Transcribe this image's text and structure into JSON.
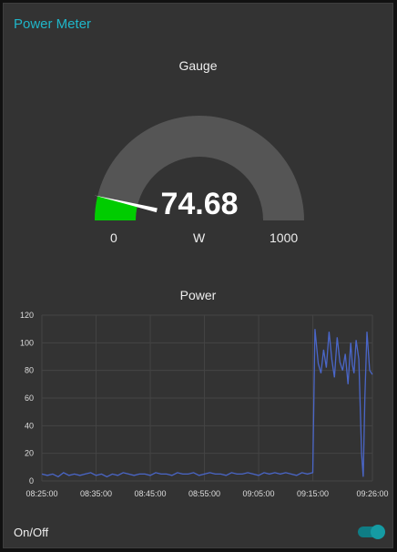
{
  "card": {
    "title": "Power Meter"
  },
  "gauge": {
    "title": "Gauge",
    "value": 74.68,
    "value_text": "74.68",
    "min": 0,
    "max": 1000,
    "min_label": "0",
    "max_label": "1000",
    "unit": "W",
    "fill_color": "#00cc00",
    "track_color": "#555555"
  },
  "chart": {
    "title": "Power",
    "line_color": "#4a66c8"
  },
  "chart_data": {
    "type": "line",
    "title": "Power",
    "xlabel": "",
    "ylabel": "",
    "ylim": [
      0,
      120
    ],
    "yticks": [
      "0",
      "20",
      "40",
      "60",
      "80",
      "100",
      "120"
    ],
    "xticks": [
      "08:25:00",
      "08:35:00",
      "08:45:00",
      "08:55:00",
      "09:05:00",
      "09:15:00",
      "09:26:00"
    ],
    "grid": true,
    "x_minutes_range": [
      0,
      61
    ],
    "series": [
      {
        "color": "#4a66c8",
        "x": [
          0,
          1,
          2,
          3,
          4,
          5,
          6,
          7,
          8,
          9,
          10,
          11,
          12,
          13,
          14,
          15,
          16,
          17,
          18,
          19,
          20,
          21,
          22,
          23,
          24,
          25,
          26,
          27,
          28,
          29,
          30,
          31,
          32,
          33,
          34,
          35,
          36,
          37,
          38,
          39,
          40,
          41,
          42,
          43,
          44,
          45,
          46,
          47,
          48,
          49,
          50,
          50.4,
          51,
          51.5,
          52,
          52.5,
          53,
          53.5,
          54,
          54.5,
          55,
          55.5,
          56,
          56.5,
          57,
          57.3,
          57.6,
          58,
          58.5,
          59,
          59.3,
          59.6,
          60,
          60.5,
          61
        ],
        "values": [
          5,
          4,
          5,
          3,
          6,
          4,
          5,
          4,
          5,
          6,
          4,
          5,
          3,
          5,
          4,
          6,
          5,
          4,
          5,
          5,
          4,
          6,
          5,
          5,
          4,
          6,
          5,
          5,
          6,
          4,
          5,
          6,
          5,
          5,
          4,
          6,
          5,
          5,
          6,
          5,
          4,
          6,
          5,
          6,
          5,
          6,
          5,
          4,
          6,
          5,
          6,
          110,
          85,
          78,
          95,
          82,
          108,
          88,
          75,
          104,
          86,
          80,
          92,
          70,
          100,
          84,
          78,
          102,
          88,
          20,
          3,
          60,
          108,
          80,
          77
        ]
      }
    ]
  },
  "toggle": {
    "label": "On/Off",
    "on": true
  }
}
